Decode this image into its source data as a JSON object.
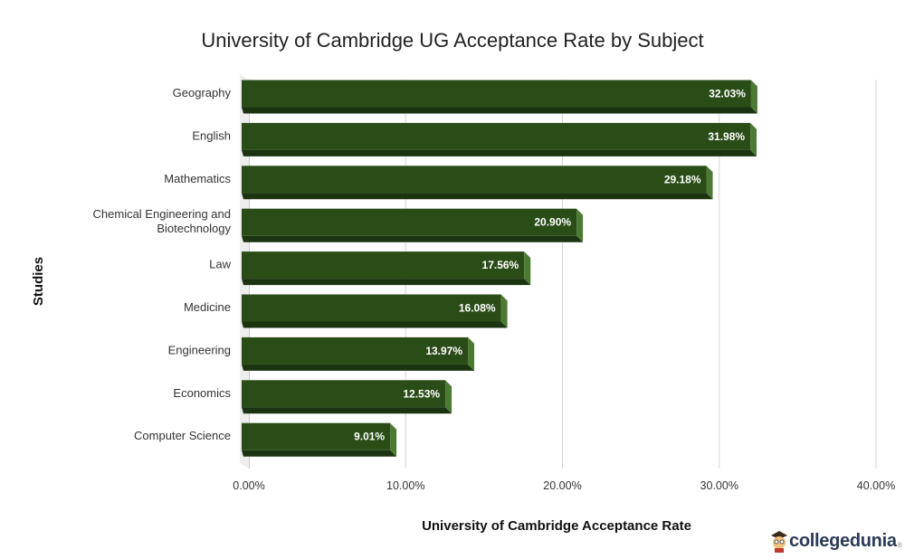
{
  "chart_data": {
    "type": "bar",
    "orientation": "horizontal",
    "title": "University of Cambridge UG Acceptance Rate by Subject",
    "xlabel": "University of Cambridge Acceptance Rate",
    "ylabel": "Studies",
    "categories": [
      [
        "Geography"
      ],
      [
        "English"
      ],
      [
        "Mathematics"
      ],
      [
        "Chemical Engineering and",
        "Biotechnology"
      ],
      [
        "Law"
      ],
      [
        "Medicine"
      ],
      [
        "Engineering"
      ],
      [
        "Economics"
      ],
      [
        "Computer Science"
      ]
    ],
    "values": [
      32.03,
      31.98,
      29.18,
      20.9,
      17.56,
      16.08,
      13.97,
      12.53,
      9.01
    ],
    "value_labels": [
      "32.03%",
      "31.98%",
      "29.18%",
      "20.90%",
      "17.56%",
      "16.08%",
      "13.97%",
      "12.53%",
      "9.01%"
    ],
    "xlim": [
      0,
      40
    ],
    "xticks": [
      0,
      10,
      20,
      30,
      40
    ],
    "xtick_labels": [
      "0.00%",
      "10.00%",
      "20.00%",
      "30.00%",
      "40.00%"
    ],
    "grid": "vertical",
    "bar_color": "#2a4d18",
    "bar_side_color": "#4d7a33",
    "bar_bottom_color": "#1a3410"
  },
  "brand": {
    "name": "collegedunia",
    "sup": "®"
  }
}
